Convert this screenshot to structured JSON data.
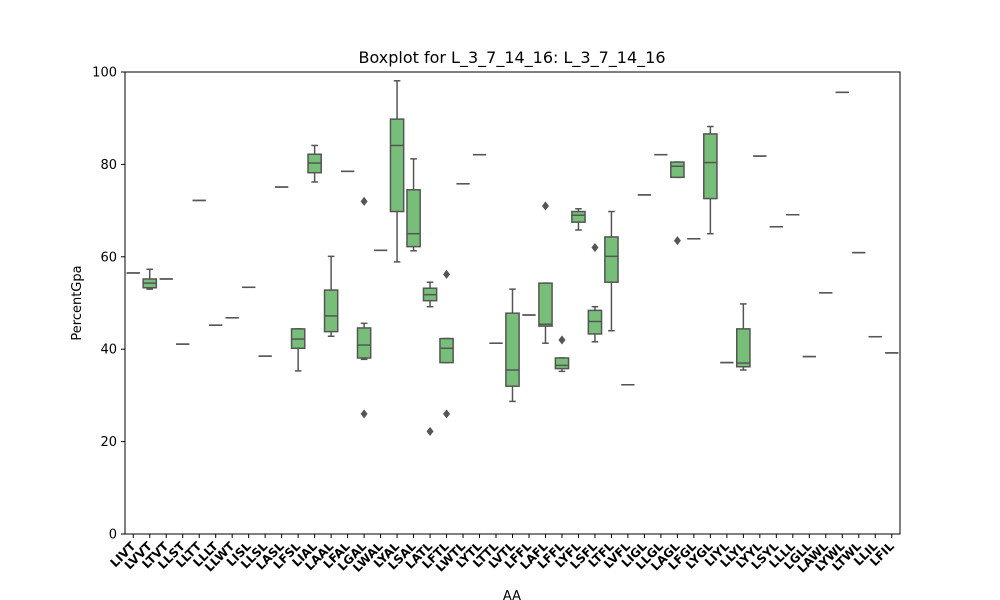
{
  "chart_data": {
    "type": "boxplot",
    "title": "Boxplot for L_3_7_14_16: L_3_7_14_16",
    "xlabel": "AA",
    "ylabel": "PercentGpa",
    "ylim": [
      0,
      100
    ],
    "yticks": [
      0,
      20,
      40,
      60,
      80,
      100
    ],
    "grid": false,
    "box_color": "#77bf78",
    "line_color": "#555555",
    "categories": [
      "LIVT",
      "LVVT",
      "LTVT",
      "LLST",
      "LLTT",
      "LLLT",
      "LLWT",
      "LISL",
      "LLSL",
      "LASL",
      "LFSL",
      "LIAL",
      "LAAL",
      "LFAL",
      "LGAL",
      "LWAL",
      "LYAL",
      "LSAL",
      "LATL",
      "LFTL",
      "LWTL",
      "LYTL",
      "LTTL",
      "LVTL",
      "LFFL",
      "LAFL",
      "LFFL",
      "LYFL",
      "LSFL",
      "LTFL",
      "LVFL",
      "LIGL",
      "LLGL",
      "LAGL",
      "LFGL",
      "LYGL",
      "LIYL",
      "LLYL",
      "LYYL",
      "LSYL",
      "LLLL",
      "LGLL",
      "LAWL",
      "LYWL",
      "LTWL",
      "LLIL",
      "LFIL"
    ],
    "boxes": [
      {
        "min": 56.5,
        "q1": 56.5,
        "median": 56.5,
        "q3": 56.5,
        "max": 56.5,
        "outliers": []
      },
      {
        "min": 53.0,
        "q1": 53.3,
        "median": 54.3,
        "q3": 55.2,
        "max": 57.3,
        "outliers": []
      },
      {
        "min": 55.2,
        "q1": 55.2,
        "median": 55.2,
        "q3": 55.2,
        "max": 55.2,
        "outliers": []
      },
      {
        "min": 41.1,
        "q1": 41.1,
        "median": 41.1,
        "q3": 41.1,
        "max": 41.1,
        "outliers": []
      },
      {
        "min": 72.2,
        "q1": 72.2,
        "median": 72.2,
        "q3": 72.2,
        "max": 72.2,
        "outliers": []
      },
      {
        "min": 45.2,
        "q1": 45.2,
        "median": 45.2,
        "q3": 45.2,
        "max": 45.2,
        "outliers": []
      },
      {
        "min": 46.8,
        "q1": 46.8,
        "median": 46.8,
        "q3": 46.8,
        "max": 46.8,
        "outliers": []
      },
      {
        "min": 53.4,
        "q1": 53.4,
        "median": 53.4,
        "q3": 53.4,
        "max": 53.4,
        "outliers": []
      },
      {
        "min": 38.5,
        "q1": 38.5,
        "median": 38.5,
        "q3": 38.5,
        "max": 38.5,
        "outliers": []
      },
      {
        "min": 75.1,
        "q1": 75.1,
        "median": 75.1,
        "q3": 75.1,
        "max": 75.1,
        "outliers": []
      },
      {
        "min": 35.3,
        "q1": 40.2,
        "median": 42.2,
        "q3": 44.4,
        "max": 44.4,
        "outliers": []
      },
      {
        "min": 76.2,
        "q1": 78.2,
        "median": 80.3,
        "q3": 82.2,
        "max": 84.1,
        "outliers": []
      },
      {
        "min": 42.8,
        "q1": 43.8,
        "median": 47.2,
        "q3": 52.8,
        "max": 60.1,
        "outliers": []
      },
      {
        "min": 78.5,
        "q1": 78.5,
        "median": 78.5,
        "q3": 78.5,
        "max": 78.5,
        "outliers": []
      },
      {
        "min": 37.8,
        "q1": 38.1,
        "median": 40.9,
        "q3": 44.6,
        "max": 45.6,
        "outliers": [
          72.0,
          26.0
        ]
      },
      {
        "min": 61.4,
        "q1": 61.4,
        "median": 61.4,
        "q3": 61.4,
        "max": 61.4,
        "outliers": []
      },
      {
        "min": 58.9,
        "q1": 69.8,
        "median": 84.1,
        "q3": 89.8,
        "max": 98.1,
        "outliers": []
      },
      {
        "min": 61.3,
        "q1": 62.2,
        "median": 65.0,
        "q3": 74.5,
        "max": 81.2,
        "outliers": []
      },
      {
        "min": 49.2,
        "q1": 50.5,
        "median": 51.8,
        "q3": 53.2,
        "max": 54.5,
        "outliers": [
          22.2
        ]
      },
      {
        "min": 37.1,
        "q1": 37.1,
        "median": 40.2,
        "q3": 42.3,
        "max": 42.3,
        "outliers": [
          56.2,
          26.0
        ]
      },
      {
        "min": 75.8,
        "q1": 75.8,
        "median": 75.8,
        "q3": 75.8,
        "max": 75.8,
        "outliers": []
      },
      {
        "min": 82.1,
        "q1": 82.1,
        "median": 82.1,
        "q3": 82.1,
        "max": 82.1,
        "outliers": []
      },
      {
        "min": 41.3,
        "q1": 41.3,
        "median": 41.3,
        "q3": 41.3,
        "max": 41.3,
        "outliers": []
      },
      {
        "min": 28.7,
        "q1": 32.0,
        "median": 35.5,
        "q3": 47.8,
        "max": 53.0,
        "outliers": []
      },
      {
        "min": 47.4,
        "q1": 47.4,
        "median": 47.4,
        "q3": 47.4,
        "max": 47.4,
        "outliers": []
      },
      {
        "min": 41.3,
        "q1": 45.0,
        "median": 45.4,
        "q3": 54.3,
        "max": 54.3,
        "outliers": [
          71.0
        ]
      },
      {
        "min": 35.2,
        "q1": 35.8,
        "median": 36.5,
        "q3": 38.1,
        "max": 38.1,
        "outliers": [
          42.0
        ]
      },
      {
        "min": 65.8,
        "q1": 67.5,
        "median": 69.0,
        "q3": 69.8,
        "max": 70.4,
        "outliers": []
      },
      {
        "min": 41.6,
        "q1": 43.3,
        "median": 46.0,
        "q3": 48.4,
        "max": 49.2,
        "outliers": [
          62.0
        ]
      },
      {
        "min": 44.0,
        "q1": 54.5,
        "median": 60.1,
        "q3": 64.3,
        "max": 69.8,
        "outliers": []
      },
      {
        "min": 32.3,
        "q1": 32.3,
        "median": 32.3,
        "q3": 32.3,
        "max": 32.3,
        "outliers": []
      },
      {
        "min": 73.4,
        "q1": 73.4,
        "median": 73.4,
        "q3": 73.4,
        "max": 73.4,
        "outliers": []
      },
      {
        "min": 82.1,
        "q1": 82.1,
        "median": 82.1,
        "q3": 82.1,
        "max": 82.1,
        "outliers": []
      },
      {
        "min": 77.2,
        "q1": 77.2,
        "median": 79.6,
        "q3": 80.5,
        "max": 80.5,
        "outliers": [
          63.5
        ]
      },
      {
        "min": 63.9,
        "q1": 63.9,
        "median": 63.9,
        "q3": 63.9,
        "max": 63.9,
        "outliers": []
      },
      {
        "min": 65.0,
        "q1": 72.6,
        "median": 80.4,
        "q3": 86.6,
        "max": 88.2,
        "outliers": []
      },
      {
        "min": 37.1,
        "q1": 37.1,
        "median": 37.1,
        "q3": 37.1,
        "max": 37.1,
        "outliers": []
      },
      {
        "min": 35.5,
        "q1": 36.2,
        "median": 37.0,
        "q3": 44.4,
        "max": 49.8,
        "outliers": []
      },
      {
        "min": 81.8,
        "q1": 81.8,
        "median": 81.8,
        "q3": 81.8,
        "max": 81.8,
        "outliers": []
      },
      {
        "min": 66.5,
        "q1": 66.5,
        "median": 66.5,
        "q3": 66.5,
        "max": 66.5,
        "outliers": []
      },
      {
        "min": 69.1,
        "q1": 69.1,
        "median": 69.1,
        "q3": 69.1,
        "max": 69.1,
        "outliers": []
      },
      {
        "min": 38.4,
        "q1": 38.4,
        "median": 38.4,
        "q3": 38.4,
        "max": 38.4,
        "outliers": []
      },
      {
        "min": 52.2,
        "q1": 52.2,
        "median": 52.2,
        "q3": 52.2,
        "max": 52.2,
        "outliers": []
      },
      {
        "min": 95.6,
        "q1": 95.6,
        "median": 95.6,
        "q3": 95.6,
        "max": 95.6,
        "outliers": []
      },
      {
        "min": 60.9,
        "q1": 60.9,
        "median": 60.9,
        "q3": 60.9,
        "max": 60.9,
        "outliers": []
      },
      {
        "min": 42.7,
        "q1": 42.7,
        "median": 42.7,
        "q3": 42.7,
        "max": 42.7,
        "outliers": []
      },
      {
        "min": 39.2,
        "q1": 39.2,
        "median": 39.2,
        "q3": 39.2,
        "max": 39.2,
        "outliers": []
      }
    ]
  }
}
